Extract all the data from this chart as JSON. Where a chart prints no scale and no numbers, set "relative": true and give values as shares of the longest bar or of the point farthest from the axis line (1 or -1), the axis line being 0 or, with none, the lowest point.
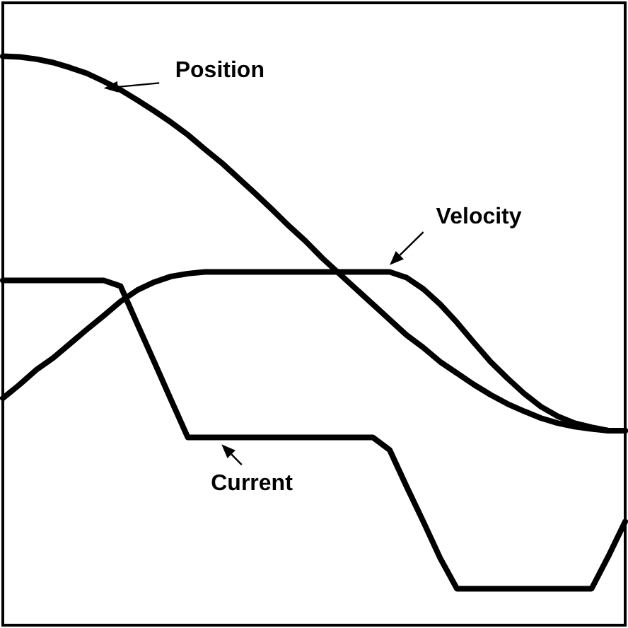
{
  "chart_data": {
    "type": "line",
    "relative": true,
    "line_style": "solid",
    "categories": [
      null,
      null,
      null,
      null,
      null,
      null,
      null,
      null,
      null,
      null,
      null,
      null,
      null,
      null,
      null,
      null,
      null,
      null,
      null,
      null,
      null,
      null,
      null,
      null,
      null,
      null,
      null,
      null,
      null,
      null,
      null,
      null,
      null,
      null,
      null,
      null,
      null,
      null
    ],
    "series": [
      {
        "name": "Position",
        "color": "#000000",
        "values": [
          1,
          0.999,
          0.995,
          0.989,
          0.98,
          0.97,
          0.956,
          0.941,
          0.923,
          0.904,
          0.884,
          0.862,
          0.837,
          0.813,
          0.786,
          0.759,
          0.731,
          0.702,
          0.675,
          0.645,
          0.618,
          0.591,
          0.564,
          0.537,
          0.51,
          0.488,
          0.463,
          0.443,
          0.423,
          0.405,
          0.389,
          0.376,
          0.364,
          0.355,
          0.349,
          0.345,
          0.342,
          0.342
        ]
      },
      {
        "name": "Velocity",
        "color": "#000000",
        "values": [
          0.399,
          0.423,
          0.449,
          0.47,
          0.495,
          0.52,
          0.544,
          0.569,
          0.589,
          0.603,
          0.613,
          0.618,
          0.621,
          0.621,
          0.621,
          0.621,
          0.621,
          0.621,
          0.621,
          0.621,
          0.621,
          0.621,
          0.621,
          0.621,
          0.611,
          0.591,
          0.564,
          0.532,
          0.497,
          0.463,
          0.434,
          0.407,
          0.384,
          0.367,
          0.355,
          0.348,
          0.342,
          0.342
        ]
      },
      {
        "name": "Current",
        "color": "#000000",
        "values": [
          0.606,
          0.606,
          0.606,
          0.606,
          0.606,
          0.606,
          0.606,
          0.596,
          0.529,
          0.463,
          0.396,
          0.33,
          0.33,
          0.33,
          0.33,
          0.33,
          0.33,
          0.33,
          0.33,
          0.33,
          0.33,
          0.33,
          0.33,
          0.308,
          0.244,
          0.182,
          0.118,
          0.064,
          0.064,
          0.064,
          0.064,
          0.064,
          0.064,
          0.064,
          0.064,
          0.064,
          0.121,
          0.182
        ]
      }
    ]
  }
}
